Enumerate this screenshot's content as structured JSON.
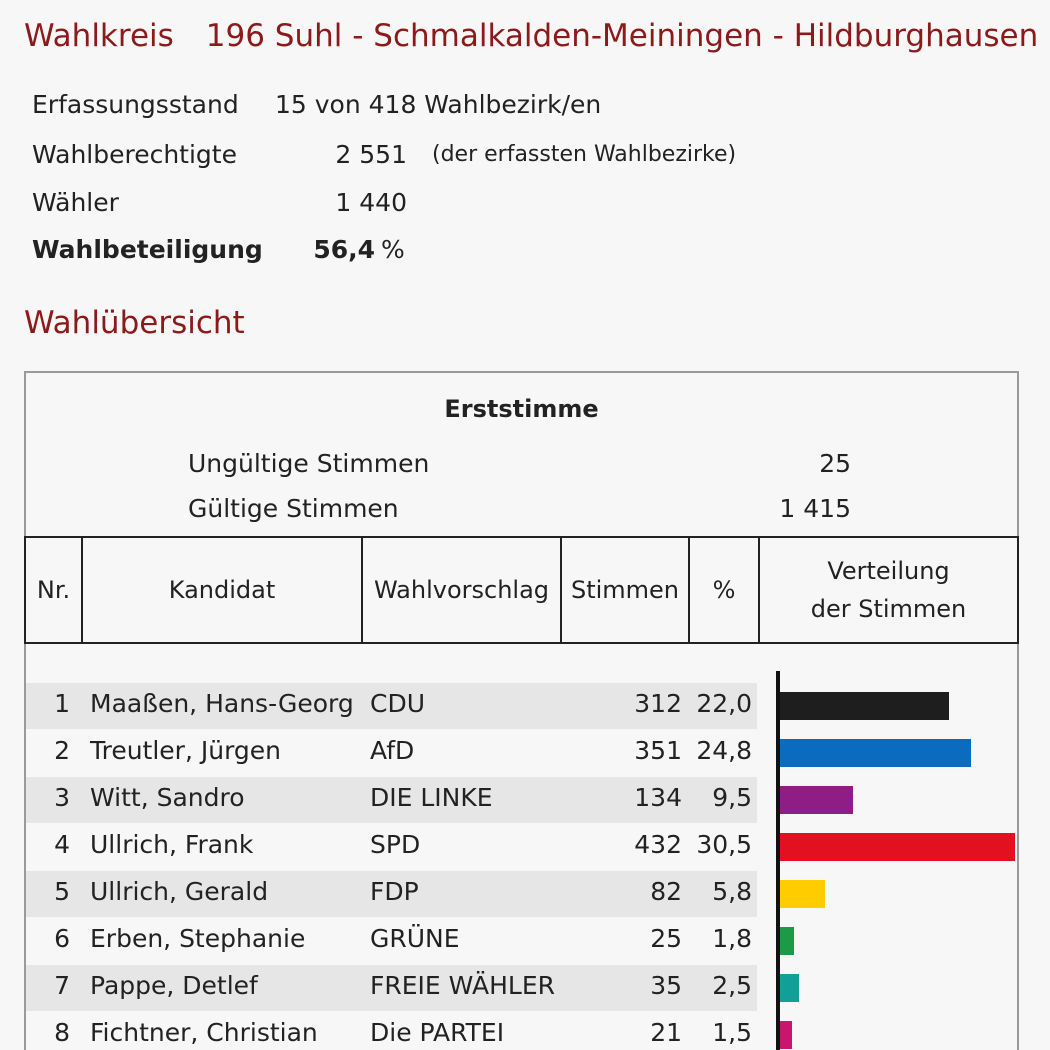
{
  "header": {
    "wahlkreis_label": "Wahlkreis",
    "wahlkreis_name": "196 Suhl - Schmalkalden-Meiningen - Hildburghausen"
  },
  "info": {
    "erfassung_label": "Erfassungsstand",
    "erfassung_value": "15 von 418 Wahlbezirk/en",
    "berechtigte_label": "Wahlberechtigte",
    "berechtigte_value": "2 551",
    "berechtigte_note": "(der erfassten Wahlbezirke)",
    "waehler_label": "Wähler",
    "waehler_value": "1 440",
    "beteiligung_label": "Wahlbeteiligung",
    "beteiligung_value": "56,4",
    "beteiligung_unit": "%"
  },
  "overview": {
    "title": "Wahlübersicht",
    "section_title": "Erststimme",
    "ungueltig_label": "Ungültige Stimmen",
    "ungueltig_value": "25",
    "gueltig_label": "Gültige Stimmen",
    "gueltig_value": "1 415",
    "columns": {
      "nr": "Nr.",
      "kandidat": "Kandidat",
      "wahlvorschlag": "Wahlvorschlag",
      "stimmen": "Stimmen",
      "pct": "%",
      "verteilung_line1": "Verteilung",
      "verteilung_line2": "der Stimmen"
    },
    "rows": [
      {
        "nr": "1",
        "name": "Maaßen, Hans-Georg",
        "party": "CDU",
        "votes": "312",
        "pct": "22,0",
        "share": 22.0,
        "color": "#1e1e1e"
      },
      {
        "nr": "2",
        "name": "Treutler, Jürgen",
        "party": "AfD",
        "votes": "351",
        "pct": "24,8",
        "share": 24.8,
        "color": "#0a6bbf"
      },
      {
        "nr": "3",
        "name": "Witt, Sandro",
        "party": "DIE LINKE",
        "votes": "134",
        "pct": "9,5",
        "share": 9.5,
        "color": "#8e1e86"
      },
      {
        "nr": "4",
        "name": "Ullrich, Frank",
        "party": "SPD",
        "votes": "432",
        "pct": "30,5",
        "share": 30.5,
        "color": "#e3101f"
      },
      {
        "nr": "5",
        "name": "Ullrich, Gerald",
        "party": "FDP",
        "votes": "82",
        "pct": "5,8",
        "share": 5.8,
        "color": "#ffcc00"
      },
      {
        "nr": "6",
        "name": "Erben, Stephanie",
        "party": "GRÜNE",
        "votes": "25",
        "pct": "1,8",
        "share": 1.8,
        "color": "#1c9a45"
      },
      {
        "nr": "7",
        "name": "Pappe, Detlef",
        "party": "FREIE WÄHLER",
        "votes": "35",
        "pct": "2,5",
        "share": 2.5,
        "color": "#11a097"
      },
      {
        "nr": "8",
        "name": "Fichtner, Christian",
        "party": "Die PARTEI",
        "votes": "21",
        "pct": "1,5",
        "share": 1.5,
        "color": "#c8166e"
      }
    ]
  }
}
